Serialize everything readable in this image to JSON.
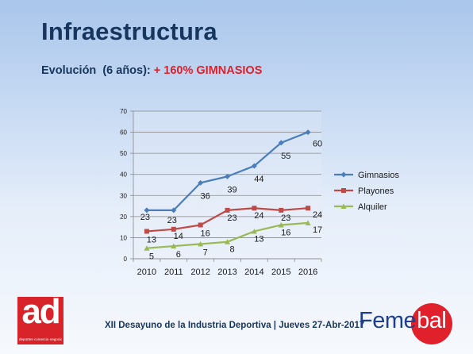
{
  "slide": {
    "title": "Infraestructura",
    "subtitle_prefix": "Evolución  (6 años): ",
    "subtitle_highlight": "+ 160% GIMNASIOS",
    "footer": "XII Desayuno de la Industria Deportiva | Jueves 27-Abr-2017",
    "logo_left_text": "ad",
    "logo_left_tagline": "deportes·comercio·negocios",
    "logo_right_part1": "Feme",
    "logo_right_part2": "bal"
  },
  "chart_data": {
    "type": "line",
    "x": [
      "2010",
      "2011",
      "2012",
      "2013",
      "2014",
      "2015",
      "2016"
    ],
    "ylim": [
      0,
      70
    ],
    "yticks": [
      0,
      10,
      20,
      30,
      40,
      50,
      60,
      70
    ],
    "grid": true,
    "legend": "right",
    "series": [
      {
        "name": "Gimnasios",
        "values": [
          23,
          23,
          36,
          39,
          44,
          55,
          60
        ],
        "color": "#4a7ebb",
        "marker": "diamond"
      },
      {
        "name": "Playones",
        "values": [
          13,
          14,
          16,
          23,
          24,
          23,
          24
        ],
        "color": "#be4b48",
        "marker": "square"
      },
      {
        "name": "Alquiler",
        "values": [
          5,
          6,
          7,
          8,
          13,
          16,
          17
        ],
        "color": "#98b954",
        "marker": "triangle"
      }
    ]
  }
}
